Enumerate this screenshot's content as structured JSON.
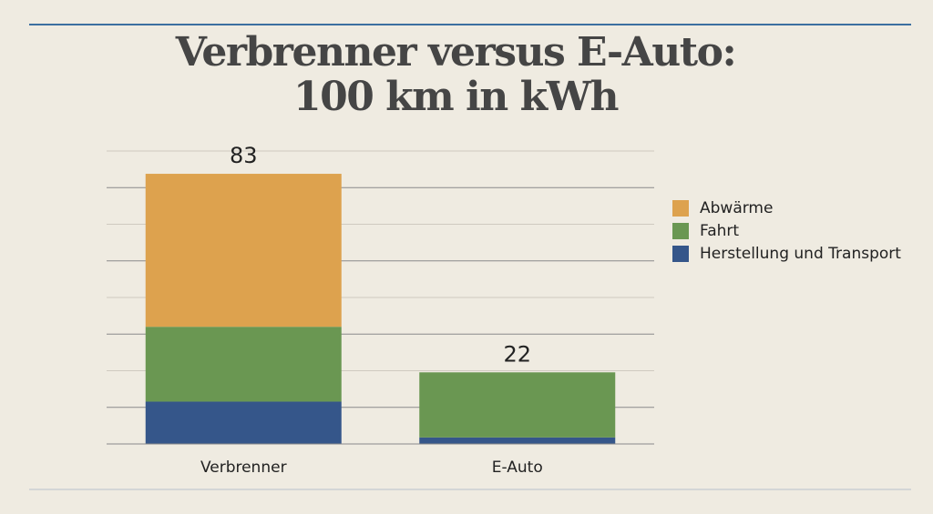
{
  "chart_data": {
    "type": "stacked_bar",
    "title": [
      "Verbrenner versus E-Auto:",
      "100 km in kWh"
    ],
    "categories": [
      "Verbrenner",
      "E-Auto"
    ],
    "series": [
      {
        "name": "Herstellung und Transport",
        "color": "#35568a",
        "values": [
          13,
          2
        ]
      },
      {
        "name": "Fahrt",
        "color": "#6a9752",
        "values": [
          23,
          20
        ]
      },
      {
        "name": "Abwärme",
        "color": "#dda24e",
        "values": [
          47,
          0
        ]
      }
    ],
    "totals": [
      83,
      22
    ],
    "ylim": [
      0,
      90
    ],
    "yticks": [
      0,
      11.25,
      22.5,
      33.75,
      45,
      56.25,
      67.5,
      78.75,
      90
    ],
    "grid": true,
    "legend": "right"
  }
}
